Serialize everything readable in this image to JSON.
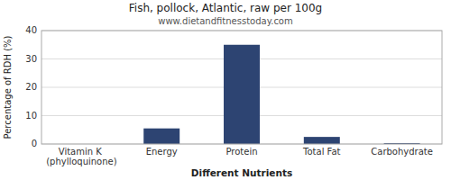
{
  "chart_data": {
    "type": "bar",
    "title": "Fish, pollock, Atlantic, raw per 100g",
    "subtitle": "www.dietandfitnesstoday.com",
    "xlabel": "Different Nutrients",
    "ylabel": "Percentage of RDH (%)",
    "categories": [
      "Vitamin K (phylloquinone)",
      "Energy",
      "Protein",
      "Total Fat",
      "Carbohydrate"
    ],
    "values": [
      0,
      5.5,
      35,
      2.5,
      0.3
    ],
    "color": "#2d4472",
    "ylim": [
      0,
      40
    ],
    "yticks": [
      0,
      10,
      20,
      30,
      40
    ],
    "grid": true
  }
}
